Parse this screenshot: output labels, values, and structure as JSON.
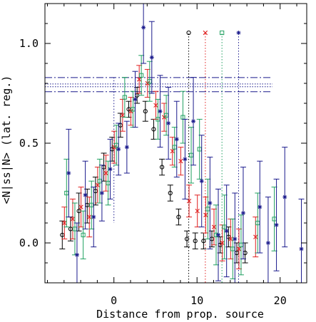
{
  "chart_data": {
    "type": "scatter",
    "title": "",
    "xlabel": "Distance from prop. source",
    "ylabel": "<N|ss|N> (lat. reg.)",
    "xlim": [
      -8.3,
      23.2
    ],
    "ylim": [
      -0.2,
      1.2
    ],
    "xticks": [
      "0",
      "10",
      "20"
    ],
    "yticks": [
      "0.0",
      "0.5",
      "1.0"
    ],
    "x_tick_values": [
      0,
      10,
      20
    ],
    "y_tick_values": [
      0.0,
      0.5,
      1.0
    ],
    "x_minor_step": 2,
    "y_minor_step": 0.1,
    "grid": false,
    "legend_placement": "top-right",
    "reference_lines": {
      "vertical_dotted_x": [
        0,
        9,
        11,
        13,
        15
      ],
      "vertical_colors": [
        "#1a1a8c",
        "#000000",
        "#e02020",
        "#20a060",
        "#1a1a8c"
      ],
      "vertical_top_y": [
        0.83,
        1.05,
        1.05,
        1.05,
        1.05
      ],
      "vertical_bottom_y": [
        0.1,
        -0.2,
        -0.2,
        -0.2,
        -0.2
      ],
      "horizontal_dashdot_y": [
        0.829,
        0.758
      ],
      "horizontal_dotted_y": [
        0.797,
        0.783
      ]
    },
    "series": [
      {
        "marker": "o",
        "color": "#000000",
        "points": [
          {
            "x": -6,
            "y": 0.04,
            "lo": -0.03,
            "hi": 0.11
          },
          {
            "x": -5,
            "y": 0.07,
            "lo": 0.01,
            "hi": 0.13
          },
          {
            "x": -4,
            "y": 0.16,
            "lo": 0.06,
            "hi": 0.25
          },
          {
            "x": -3,
            "y": 0.19,
            "lo": 0.1,
            "hi": 0.27
          },
          {
            "x": -2,
            "y": 0.26,
            "lo": 0.19,
            "hi": 0.33
          },
          {
            "x": -1,
            "y": 0.38,
            "lo": 0.31,
            "hi": 0.45
          },
          {
            "x": 0,
            "y": 0.47,
            "lo": 0.41,
            "hi": 0.53
          },
          {
            "x": 1,
            "y": 0.59,
            "lo": 0.53,
            "hi": 0.65
          },
          {
            "x": 2,
            "y": 0.67,
            "lo": 0.63,
            "hi": 0.71
          },
          {
            "x": 3,
            "y": 0.74,
            "lo": 0.7,
            "hi": 0.78
          },
          {
            "x": 4,
            "y": 0.66,
            "lo": 0.61,
            "hi": 0.71
          },
          {
            "x": 5,
            "y": 0.57,
            "lo": 0.52,
            "hi": 0.62
          },
          {
            "x": 6,
            "y": 0.38,
            "lo": 0.34,
            "hi": 0.42
          },
          {
            "x": 7,
            "y": 0.25,
            "lo": 0.21,
            "hi": 0.29
          },
          {
            "x": 8,
            "y": 0.13,
            "lo": 0.09,
            "hi": 0.17
          },
          {
            "x": 9,
            "y": 0.02,
            "lo": -0.02,
            "hi": 0.06
          },
          {
            "x": 10,
            "y": 0.01,
            "lo": -0.03,
            "hi": 0.05
          },
          {
            "x": 11,
            "y": 0.01,
            "lo": -0.03,
            "hi": 0.05
          },
          {
            "x": 12,
            "y": 0.02,
            "lo": -0.02,
            "hi": 0.06
          },
          {
            "x": 13,
            "y": -0.01,
            "lo": -0.05,
            "hi": 0.03
          },
          {
            "x": 14,
            "y": 0.03,
            "lo": -0.02,
            "hi": 0.08
          },
          {
            "x": 15,
            "y": -0.05,
            "lo": -0.1,
            "hi": 0.0
          },
          {
            "x": 16,
            "y": -0.05,
            "lo": -0.1,
            "hi": 0.0
          }
        ]
      },
      {
        "marker": "x",
        "color": "#e02020",
        "points": [
          {
            "x": -6,
            "y": 0.1,
            "lo": 0.02,
            "hi": 0.18
          },
          {
            "x": -5,
            "y": 0.12,
            "lo": 0.02,
            "hi": 0.22
          },
          {
            "x": -4,
            "y": 0.18,
            "lo": 0.08,
            "hi": 0.28
          },
          {
            "x": -3,
            "y": 0.13,
            "lo": 0.03,
            "hi": 0.23
          },
          {
            "x": -2,
            "y": 0.29,
            "lo": 0.2,
            "hi": 0.38
          },
          {
            "x": -1,
            "y": 0.35,
            "lo": 0.26,
            "hi": 0.44
          },
          {
            "x": 0,
            "y": 0.48,
            "lo": 0.4,
            "hi": 0.56
          },
          {
            "x": 1,
            "y": 0.64,
            "lo": 0.56,
            "hi": 0.72
          },
          {
            "x": 2,
            "y": 0.66,
            "lo": 0.59,
            "hi": 0.73
          },
          {
            "x": 3,
            "y": 0.82,
            "lo": 0.75,
            "hi": 0.89
          },
          {
            "x": 4,
            "y": 0.8,
            "lo": 0.73,
            "hi": 0.87
          },
          {
            "x": 5,
            "y": 0.69,
            "lo": 0.62,
            "hi": 0.76
          },
          {
            "x": 6,
            "y": 0.63,
            "lo": 0.56,
            "hi": 0.7
          },
          {
            "x": 7,
            "y": 0.46,
            "lo": 0.39,
            "hi": 0.53
          },
          {
            "x": 8,
            "y": 0.41,
            "lo": 0.34,
            "hi": 0.48
          },
          {
            "x": 9,
            "y": 0.21,
            "lo": 0.13,
            "hi": 0.29
          },
          {
            "x": 10,
            "y": 0.16,
            "lo": 0.08,
            "hi": 0.24
          },
          {
            "x": 11,
            "y": 0.14,
            "lo": 0.05,
            "hi": 0.23
          },
          {
            "x": 12,
            "y": 0.08,
            "lo": -0.01,
            "hi": 0.17
          },
          {
            "x": 13,
            "y": 0.0,
            "lo": -0.09,
            "hi": 0.09
          },
          {
            "x": 14,
            "y": 0.02,
            "lo": -0.08,
            "hi": 0.12
          },
          {
            "x": 15,
            "y": -0.03,
            "lo": -0.13,
            "hi": 0.07
          },
          {
            "x": 17,
            "y": 0.03,
            "lo": -0.07,
            "hi": 0.13
          }
        ]
      },
      {
        "marker": "square",
        "color": "#20a060",
        "points": [
          {
            "x": -6,
            "y": 0.25,
            "lo": 0.08,
            "hi": 0.42
          },
          {
            "x": -5,
            "y": 0.07,
            "lo": -0.06,
            "hi": 0.2
          },
          {
            "x": -4,
            "y": 0.04,
            "lo": -0.08,
            "hi": 0.16
          },
          {
            "x": -3,
            "y": 0.19,
            "lo": 0.07,
            "hi": 0.31
          },
          {
            "x": -2,
            "y": 0.31,
            "lo": 0.2,
            "hi": 0.42
          },
          {
            "x": -1,
            "y": 0.3,
            "lo": 0.19,
            "hi": 0.41
          },
          {
            "x": 0,
            "y": 0.49,
            "lo": 0.39,
            "hi": 0.59
          },
          {
            "x": 1,
            "y": 0.73,
            "lo": 0.63,
            "hi": 0.83
          },
          {
            "x": 2,
            "y": 0.67,
            "lo": 0.58,
            "hi": 0.76
          },
          {
            "x": 3,
            "y": 0.84,
            "lo": 0.74,
            "hi": 0.94
          },
          {
            "x": 4,
            "y": 0.81,
            "lo": 0.71,
            "hi": 0.91
          },
          {
            "x": 5,
            "y": 0.62,
            "lo": 0.52,
            "hi": 0.72
          },
          {
            "x": 6,
            "y": 0.64,
            "lo": 0.54,
            "hi": 0.74
          },
          {
            "x": 7,
            "y": 0.48,
            "lo": 0.38,
            "hi": 0.58
          },
          {
            "x": 8,
            "y": 0.63,
            "lo": 0.5,
            "hi": 0.76
          },
          {
            "x": 9,
            "y": 0.44,
            "lo": 0.3,
            "hi": 0.58
          },
          {
            "x": 10,
            "y": 0.47,
            "lo": 0.32,
            "hi": 0.62
          },
          {
            "x": 11,
            "y": 0.17,
            "lo": 0.02,
            "hi": 0.32
          },
          {
            "x": 12,
            "y": 0.04,
            "lo": -0.11,
            "hi": 0.19
          },
          {
            "x": 13,
            "y": 0.08,
            "lo": -0.08,
            "hi": 0.24
          },
          {
            "x": 14,
            "y": -0.03,
            "lo": -0.18,
            "hi": 0.12
          },
          {
            "x": 15,
            "y": -0.01,
            "lo": -0.16,
            "hi": 0.14
          },
          {
            "x": 17,
            "y": 0.1,
            "lo": -0.05,
            "hi": 0.25
          },
          {
            "x": 19,
            "y": 0.12,
            "lo": -0.04,
            "hi": 0.28
          }
        ]
      },
      {
        "marker": "asterisk",
        "color": "#1a1a8c",
        "points": [
          {
            "x": -6,
            "y": 0.35,
            "lo": 0.13,
            "hi": 0.57
          },
          {
            "x": -5,
            "y": -0.06,
            "lo": -0.2,
            "hi": 0.1
          },
          {
            "x": -4,
            "y": 0.24,
            "lo": 0.07,
            "hi": 0.41
          },
          {
            "x": -3,
            "y": 0.13,
            "lo": -0.02,
            "hi": 0.28
          },
          {
            "x": -2,
            "y": 0.25,
            "lo": 0.11,
            "hi": 0.39
          },
          {
            "x": -1,
            "y": 0.37,
            "lo": 0.22,
            "hi": 0.52
          },
          {
            "x": 0,
            "y": 0.47,
            "lo": 0.34,
            "hi": 0.6
          },
          {
            "x": 1,
            "y": 0.48,
            "lo": 0.35,
            "hi": 0.61
          },
          {
            "x": 2,
            "y": 0.72,
            "lo": 0.58,
            "hi": 0.86
          },
          {
            "x": 3,
            "y": 1.08,
            "lo": 0.9,
            "hi": 1.26
          },
          {
            "x": 4,
            "y": 0.93,
            "lo": 0.75,
            "hi": 1.11
          },
          {
            "x": 5,
            "y": 0.66,
            "lo": 0.48,
            "hi": 0.84
          },
          {
            "x": 6,
            "y": 0.6,
            "lo": 0.42,
            "hi": 0.78
          },
          {
            "x": 7,
            "y": 0.52,
            "lo": 0.33,
            "hi": 0.71
          },
          {
            "x": 8,
            "y": 0.42,
            "lo": 0.22,
            "hi": 0.62
          },
          {
            "x": 9,
            "y": 0.61,
            "lo": 0.39,
            "hi": 0.83
          },
          {
            "x": 10,
            "y": 0.31,
            "lo": 0.08,
            "hi": 0.54
          },
          {
            "x": 11,
            "y": 0.2,
            "lo": -0.03,
            "hi": 0.43
          },
          {
            "x": 12,
            "y": 0.04,
            "lo": -0.19,
            "hi": 0.27
          },
          {
            "x": 13,
            "y": 0.06,
            "lo": -0.17,
            "hi": 0.29
          },
          {
            "x": 14,
            "y": 0.02,
            "lo": -0.21,
            "hi": 0.25
          },
          {
            "x": 15,
            "y": 0.15,
            "lo": -0.08,
            "hi": 0.38
          },
          {
            "x": 17,
            "y": 0.18,
            "lo": -0.05,
            "hi": 0.41
          },
          {
            "x": 18,
            "y": 0.0,
            "lo": -0.23,
            "hi": 0.23
          },
          {
            "x": 19,
            "y": 0.09,
            "lo": -0.14,
            "hi": 0.32
          },
          {
            "x": 20,
            "y": 0.23,
            "lo": -0.02,
            "hi": 0.48
          },
          {
            "x": 22,
            "y": -0.03,
            "lo": -0.28,
            "hi": 0.22
          }
        ]
      }
    ]
  }
}
